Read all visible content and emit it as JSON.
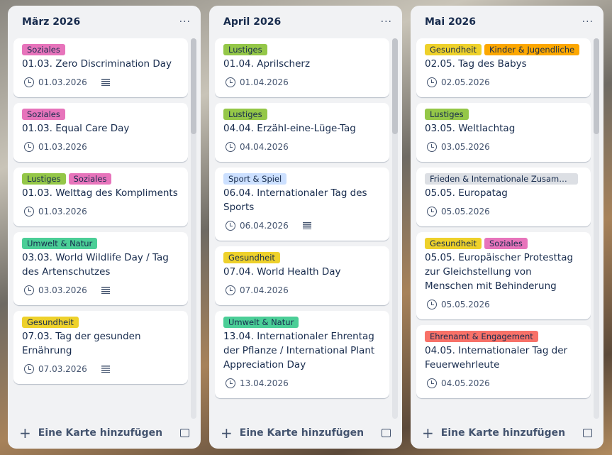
{
  "colors": {
    "Soziales": "#e774bb",
    "Lustiges": "#94c748",
    "Umwelt & Natur": "#4bce97",
    "Gesundheit": "#eed12b",
    "Sport & Spiel": "#cce0ff",
    "Kinder & Jugendliche": "#fca700",
    "Frieden & Internationale Zusammenarbeit": "#dcdfe4",
    "Ehrenamt & Engagement": "#f87168"
  },
  "add_card_label": "Eine Karte hinzufügen",
  "more_label": "···",
  "lists": [
    {
      "title": "März 2026",
      "cards": [
        {
          "labels": [
            "Soziales"
          ],
          "title": "01.03. Zero Discrimination Day",
          "date": "01.03.2026",
          "desc": true
        },
        {
          "labels": [
            "Soziales"
          ],
          "title": "01.03. Equal Care Day",
          "date": "01.03.2026",
          "desc": false
        },
        {
          "labels": [
            "Lustiges",
            "Soziales"
          ],
          "title": "01.03. Welttag des Kompliments",
          "date": "01.03.2026",
          "desc": false
        },
        {
          "labels": [
            "Umwelt & Natur"
          ],
          "title": "03.03. World Wildlife Day / Tag des Artenschutzes",
          "date": "03.03.2026",
          "desc": true
        },
        {
          "labels": [
            "Gesundheit"
          ],
          "title": "07.03. Tag der gesunden Ernährung",
          "date": "07.03.2026",
          "desc": true
        }
      ]
    },
    {
      "title": "April 2026",
      "cards": [
        {
          "labels": [
            "Lustiges"
          ],
          "title": "01.04. Aprilscherz",
          "date": "01.04.2026",
          "desc": false
        },
        {
          "labels": [
            "Lustiges"
          ],
          "title": "04.04. Erzähl-eine-Lüge-Tag",
          "date": "04.04.2026",
          "desc": false
        },
        {
          "labels": [
            "Sport & Spiel"
          ],
          "title": "06.04. Internationaler Tag des Sports",
          "date": "06.04.2026",
          "desc": true
        },
        {
          "labels": [
            "Gesundheit"
          ],
          "title": "07.04. World Health Day",
          "date": "07.04.2026",
          "desc": false
        },
        {
          "labels": [
            "Umwelt & Natur"
          ],
          "title": "13.04. Internationaler Ehrentag der Pflanze / International Plant Appreciation Day",
          "date": "13.04.2026",
          "desc": false
        }
      ]
    },
    {
      "title": "Mai 2026",
      "cards": [
        {
          "labels": [
            "Gesundheit",
            "Kinder & Jugendliche"
          ],
          "title": "02.05. Tag des Babys",
          "date": "02.05.2026",
          "desc": false
        },
        {
          "labels": [
            "Lustiges"
          ],
          "title": "03.05. Weltlachtag",
          "date": "03.05.2026",
          "desc": false
        },
        {
          "labels": [
            "Frieden & Internationale Zusammenarbeit"
          ],
          "title": "05.05. Europatag",
          "date": "05.05.2026",
          "desc": false
        },
        {
          "labels": [
            "Gesundheit",
            "Soziales"
          ],
          "title": "05.05. Europäischer Protesttag zur Gleichstellung von Menschen mit Behinderung",
          "date": "05.05.2026",
          "desc": false
        },
        {
          "labels": [
            "Ehrenamt & Engagement"
          ],
          "title": "04.05. Internationaler Tag der Feuerwehrleute",
          "date": "04.05.2026",
          "desc": false
        }
      ]
    }
  ]
}
